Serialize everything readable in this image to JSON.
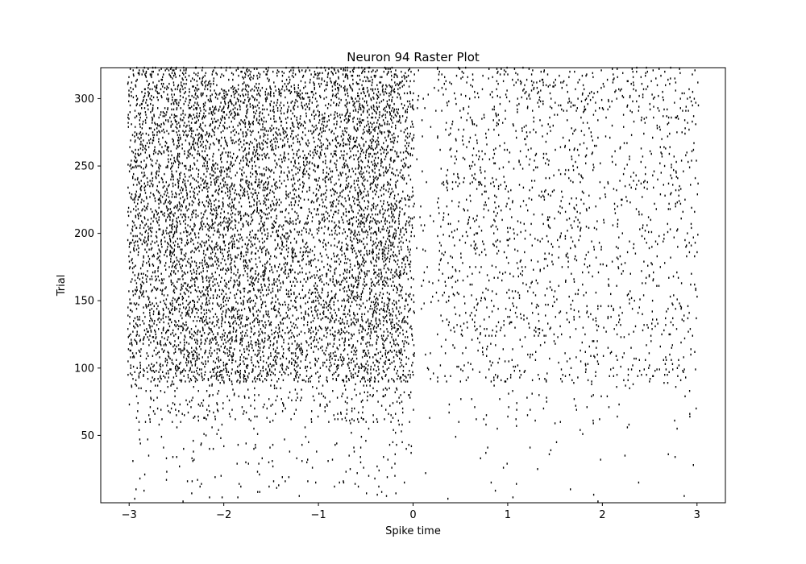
{
  "chart_data": {
    "type": "scatter",
    "subtype": "raster",
    "title": "Neuron 94 Raster Plot",
    "xlabel": "Spike time",
    "ylabel": "Trial",
    "xlim": [
      -3.3,
      3.3
    ],
    "ylim": [
      0,
      323
    ],
    "x_ticks": [
      -3,
      -2,
      -1,
      0,
      1,
      2,
      3
    ],
    "x_tick_labels": [
      "−3",
      "−2",
      "−1",
      "0",
      "1",
      "2",
      "3"
    ],
    "y_ticks": [
      50,
      100,
      150,
      200,
      250,
      300
    ],
    "y_tick_labels": [
      "50",
      "100",
      "150",
      "200",
      "250",
      "300"
    ],
    "n_trials": 323,
    "time_range": [
      -3,
      3
    ],
    "marker": "tick",
    "marker_color": "#000000",
    "grid": false,
    "legend": "none",
    "firing_rate_profile": {
      "pre_stimulus_dense_window": [
        -3.0,
        0.0
      ],
      "burst_window": [
        -1.0,
        0.0
      ],
      "post_stimulus_window": [
        0.0,
        3.0
      ],
      "sparse_trials_below": 90
    },
    "sample_spikes": [
      {
        "trial": 190,
        "times": [
          -2.95,
          -2.62,
          -2.31,
          -2.05,
          -1.88,
          -1.52,
          -1.21,
          -0.88,
          -0.74,
          -0.52,
          -0.33,
          -0.12,
          0.05,
          0.41,
          0.92,
          1.45,
          2.11,
          2.67
        ]
      },
      {
        "trial": 150,
        "times": [
          -2.91,
          -2.55,
          -2.18,
          -1.93,
          -1.61,
          -1.3,
          -0.95,
          -0.71,
          -0.45,
          -0.22,
          0.48,
          1.12,
          1.71,
          2.38,
          2.84
        ]
      },
      {
        "trial": 90,
        "times": [
          -2.97,
          -2.41,
          -1.84,
          -1.22,
          -0.81,
          -0.36,
          0.52,
          1.33,
          2.02,
          2.71
        ]
      },
      {
        "trial": 40,
        "times": [
          -2.88,
          -1.71,
          -0.62,
          0.21,
          1.88
        ]
      },
      {
        "trial": 5,
        "times": [
          -2.74,
          -1.05,
          0.18,
          2.93
        ]
      }
    ]
  }
}
